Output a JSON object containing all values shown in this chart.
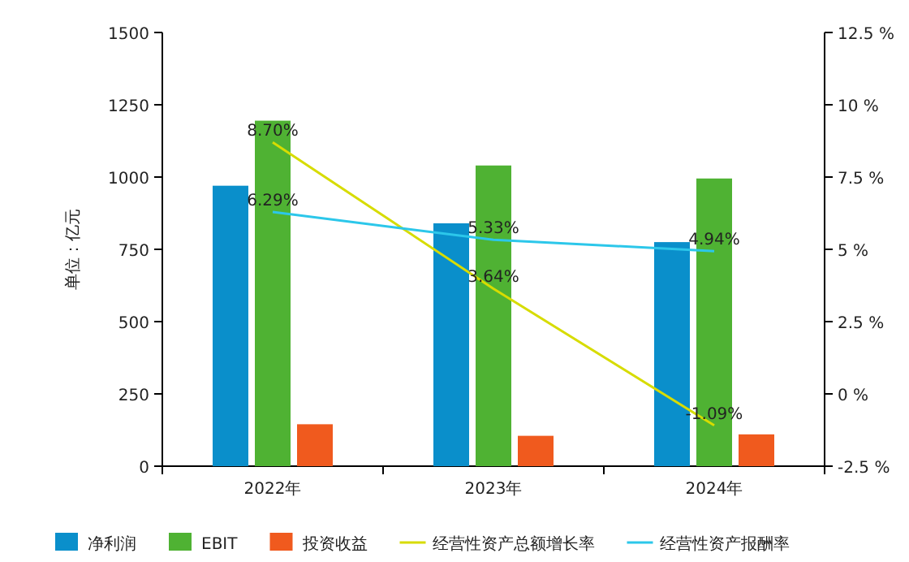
{
  "chart_data": {
    "type": "bar",
    "ylabel": "单位：亿元",
    "categories": [
      "2022年",
      "2023年",
      "2024年"
    ],
    "series": [
      {
        "name": "净利润",
        "color": "#0a8fcb",
        "values": [
          970,
          840,
          775
        ]
      },
      {
        "name": "EBIT",
        "color": "#4fb233",
        "values": [
          1195,
          1040,
          995
        ]
      },
      {
        "name": "投资收益",
        "color": "#f05a1e",
        "values": [
          145,
          105,
          110
        ]
      },
      {
        "name": "经营性资产总额增长率",
        "type": "line",
        "axis": "y2",
        "color": "#d7dc00",
        "values": [
          8.7,
          3.64,
          -1.09
        ],
        "value_labels": [
          "8.70%",
          "3.64%",
          "-1.09%"
        ]
      },
      {
        "name": "经营性资产报酬率",
        "type": "line",
        "axis": "y2",
        "color": "#2cc7ea",
        "values": [
          6.29,
          5.33,
          4.94
        ],
        "value_labels": [
          "6.29%",
          "5.33%",
          "4.94%"
        ]
      }
    ],
    "ylim": [
      0,
      1500
    ],
    "yticks": [
      0,
      250,
      500,
      750,
      1000,
      1250,
      1500
    ],
    "y2lim": [
      -2.5,
      12.5
    ],
    "y2ticks": [
      {
        "value": -2.5,
        "label": "-2.5 %"
      },
      {
        "value": 0,
        "label": "0 %"
      },
      {
        "value": 2.5,
        "label": "2.5 %"
      },
      {
        "value": 5,
        "label": "5 %"
      },
      {
        "value": 7.5,
        "label": "7.5 %"
      },
      {
        "value": 10,
        "label": "10 %"
      },
      {
        "value": 12.5,
        "label": "12.5 %"
      }
    ],
    "legend": "bottom"
  }
}
